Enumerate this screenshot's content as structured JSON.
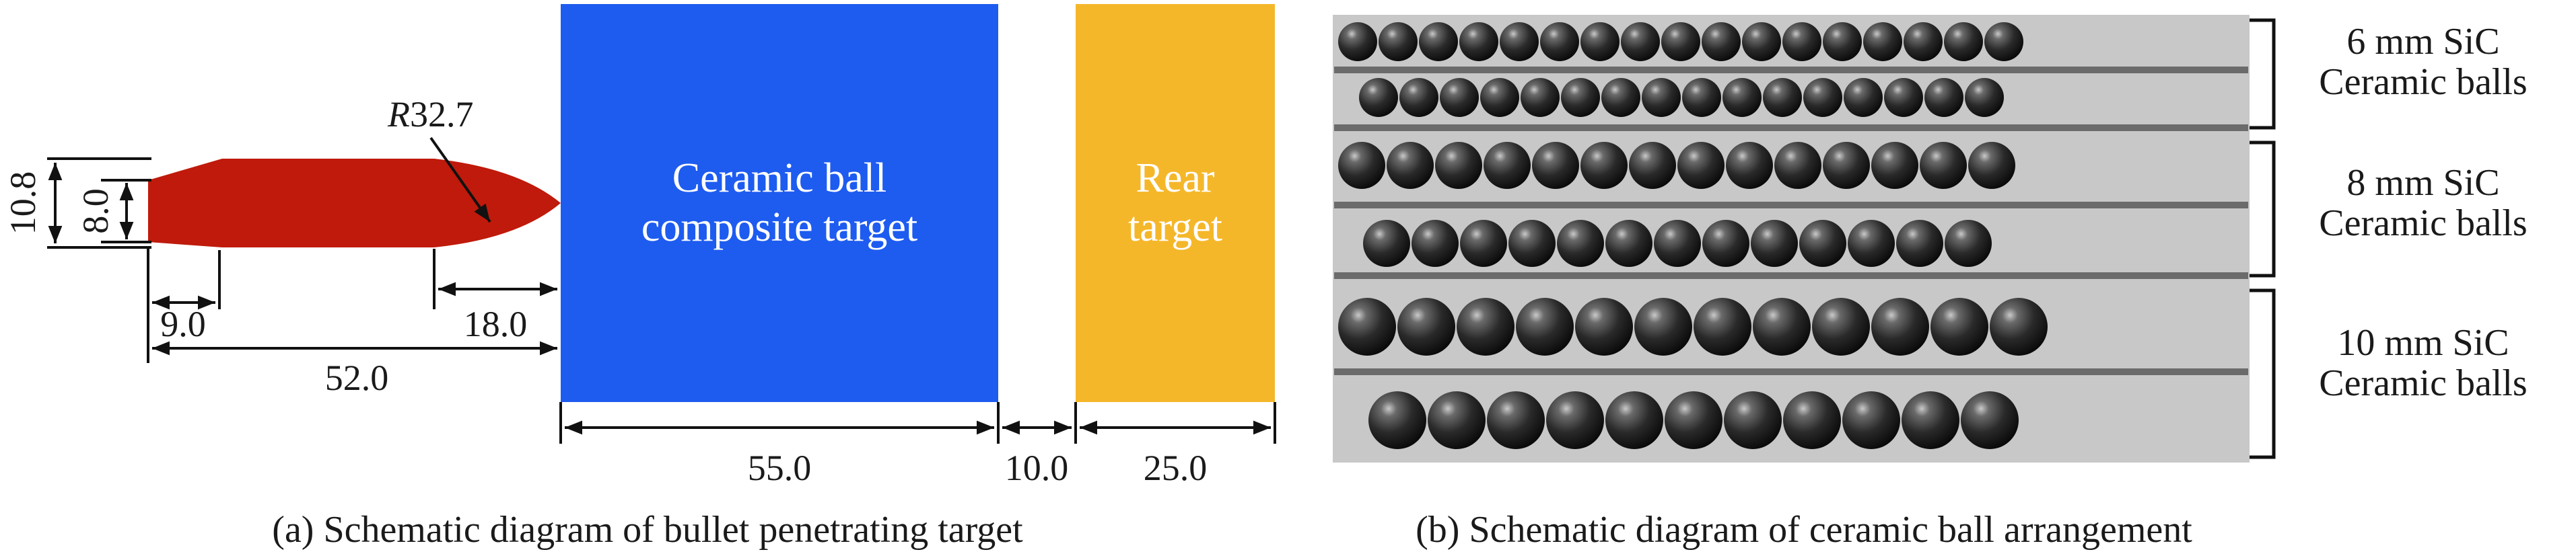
{
  "panel_a": {
    "caption": "(a) Schematic diagram of bullet penetrating target",
    "bullet": {
      "color": "#bf1a0b",
      "dims": {
        "outer_diameter": "10.8",
        "inner_diameter": "8.0",
        "radius_prefix": "R",
        "radius_value": "32.7",
        "tail_length": "9.0",
        "nose_length": "18.0",
        "total_length": "52.0"
      }
    },
    "composite_target": {
      "color": "#1e5cf0",
      "line1": "Ceramic ball",
      "line2": "composite target",
      "thickness": "55.0"
    },
    "gap": "10.0",
    "rear_target": {
      "color": "#f5b72a",
      "line1": "Rear",
      "line2": "target",
      "thickness": "25.0"
    }
  },
  "panel_b": {
    "caption": "(b) Schematic diagram of ceramic ball arrangement",
    "groups": [
      {
        "line1": "6 mm SiC",
        "line2": "Ceramic balls",
        "rows": [
          17,
          16
        ]
      },
      {
        "line1": "8 mm SiC",
        "line2": "Ceramic balls",
        "rows": [
          14,
          13
        ]
      },
      {
        "line1": "10 mm SiC",
        "line2": "Ceramic balls",
        "rows": [
          12,
          11
        ]
      }
    ]
  }
}
